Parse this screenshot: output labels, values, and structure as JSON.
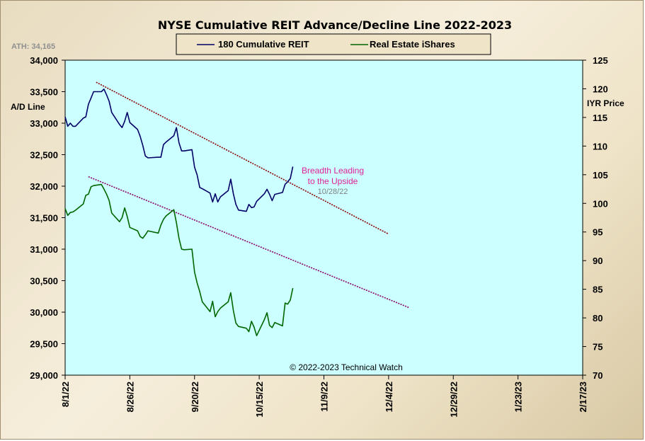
{
  "chart_data": {
    "type": "line",
    "title": "NYSE Cumulative  REIT Advance/Decline  Line 2022-2023",
    "ath_label": "ATH: 34,165",
    "left_axis_label": "A/D Line",
    "right_axis_label": "IYR Price",
    "left_ylim": [
      29000,
      34000
    ],
    "right_ylim": [
      70,
      125
    ],
    "left_ticks": [
      "34,000",
      "33,500",
      "33,000",
      "32,500",
      "32,000",
      "31,500",
      "31,000",
      "30,500",
      "30,000",
      "29,500",
      "29,000"
    ],
    "right_ticks": [
      "125",
      "120",
      "115",
      "110",
      "105",
      "100",
      "95",
      "90",
      "85",
      "80",
      "75",
      "70"
    ],
    "x_tick_labels": [
      "8/1/22",
      "8/26/22",
      "9/20/22",
      "10/15/22",
      "11/9/22",
      "12/4/22",
      "12/29/22",
      "1/23/23",
      "2/17/23"
    ],
    "grid": false,
    "legend_position": "top-center",
    "background_color": "#ccffff",
    "copyright": "© 2022-2023  Technical  Watch",
    "annotation": {
      "line1": "Breadth Leading",
      "line2": "to the Upside",
      "date": "10/28/22",
      "color": "#e0209a",
      "date_color": "#808080"
    },
    "series": [
      {
        "name": "180 Cumulative REIT",
        "axis": "left",
        "color": "#000066",
        "x": [
          "2022-08-01",
          "2022-08-02",
          "2022-08-03",
          "2022-08-04",
          "2022-08-05",
          "2022-08-08",
          "2022-08-09",
          "2022-08-10",
          "2022-08-11",
          "2022-08-12",
          "2022-08-15",
          "2022-08-16",
          "2022-08-17",
          "2022-08-18",
          "2022-08-19",
          "2022-08-22",
          "2022-08-23",
          "2022-08-24",
          "2022-08-25",
          "2022-08-26",
          "2022-08-29",
          "2022-08-30",
          "2022-08-31",
          "2022-09-01",
          "2022-09-02",
          "2022-09-06",
          "2022-09-07",
          "2022-09-08",
          "2022-09-09",
          "2022-09-12",
          "2022-09-13",
          "2022-09-14",
          "2022-09-15",
          "2022-09-16",
          "2022-09-19",
          "2022-09-20",
          "2022-09-21",
          "2022-09-22",
          "2022-09-23",
          "2022-09-26",
          "2022-09-27",
          "2022-09-28",
          "2022-09-29",
          "2022-09-30",
          "2022-10-03",
          "2022-10-04",
          "2022-10-05",
          "2022-10-06",
          "2022-10-07",
          "2022-10-10",
          "2022-10-11",
          "2022-10-12",
          "2022-10-13",
          "2022-10-14",
          "2022-10-17",
          "2022-10-18",
          "2022-10-19",
          "2022-10-20",
          "2022-10-21",
          "2022-10-24",
          "2022-10-25",
          "2022-10-26",
          "2022-10-27",
          "2022-10-28"
        ],
        "values": [
          33100,
          32950,
          33000,
          32950,
          32950,
          33080,
          33100,
          33300,
          33400,
          33500,
          33500,
          33540,
          33450,
          33350,
          33170,
          32980,
          32930,
          33030,
          33170,
          33010,
          32900,
          32790,
          32650,
          32480,
          32450,
          32460,
          32460,
          32660,
          32700,
          32800,
          32930,
          32690,
          32560,
          32560,
          32580,
          32300,
          32180,
          31980,
          31960,
          31890,
          31750,
          31880,
          31750,
          31830,
          31930,
          32110,
          31880,
          31710,
          31620,
          31600,
          31710,
          31660,
          31670,
          31760,
          31880,
          31950,
          31870,
          31770,
          31870,
          31900,
          32030,
          32070,
          32120,
          32310
        ]
      },
      {
        "name": "Real Estate iShares",
        "axis": "right",
        "color": "#006600",
        "x": [
          "2022-08-01",
          "2022-08-02",
          "2022-08-03",
          "2022-08-04",
          "2022-08-05",
          "2022-08-08",
          "2022-08-09",
          "2022-08-10",
          "2022-08-11",
          "2022-08-12",
          "2022-08-15",
          "2022-08-16",
          "2022-08-17",
          "2022-08-18",
          "2022-08-19",
          "2022-08-22",
          "2022-08-23",
          "2022-08-24",
          "2022-08-25",
          "2022-08-26",
          "2022-08-29",
          "2022-08-30",
          "2022-08-31",
          "2022-09-01",
          "2022-09-02",
          "2022-09-06",
          "2022-09-07",
          "2022-09-08",
          "2022-09-09",
          "2022-09-12",
          "2022-09-13",
          "2022-09-14",
          "2022-09-15",
          "2022-09-16",
          "2022-09-19",
          "2022-09-20",
          "2022-09-21",
          "2022-09-22",
          "2022-09-23",
          "2022-09-26",
          "2022-09-27",
          "2022-09-28",
          "2022-09-29",
          "2022-09-30",
          "2022-10-03",
          "2022-10-04",
          "2022-10-05",
          "2022-10-06",
          "2022-10-07",
          "2022-10-10",
          "2022-10-11",
          "2022-10-12",
          "2022-10-13",
          "2022-10-14",
          "2022-10-17",
          "2022-10-18",
          "2022-10-19",
          "2022-10-20",
          "2022-10-21",
          "2022-10-24",
          "2022-10-25",
          "2022-10-26",
          "2022-10-27",
          "2022-10-28"
        ],
        "values": [
          99.1,
          97.9,
          98.4,
          98.5,
          98.8,
          99.9,
          101.4,
          101.6,
          102.9,
          103.1,
          103.3,
          102.5,
          101.6,
          100.5,
          98.3,
          96.8,
          97.5,
          99.2,
          97.7,
          95.8,
          95.2,
          94.2,
          93.9,
          94.5,
          95.2,
          94.8,
          96.2,
          97.2,
          97.8,
          98.9,
          96.6,
          93.9,
          92.0,
          91.9,
          92.0,
          88.0,
          86.1,
          84.6,
          82.8,
          81.1,
          82.9,
          80.2,
          81.1,
          81.7,
          82.8,
          84.4,
          81.3,
          79.1,
          78.5,
          78.2,
          77.6,
          79.4,
          78.4,
          76.9,
          79.7,
          80.9,
          78.7,
          78.3,
          79.2,
          78.6,
          82.6,
          82.4,
          83.1,
          85.2
        ]
      }
    ],
    "trendlines": [
      {
        "color": "#8b0000",
        "x": [
          "2022-08-13",
          "2022-12-04"
        ],
        "values": [
          33650,
          31240
        ],
        "axis": "left"
      },
      {
        "color": "#8b0068",
        "x": [
          "2022-08-10",
          "2022-12-12"
        ],
        "values": [
          32150,
          30070
        ],
        "axis": "left"
      }
    ]
  }
}
